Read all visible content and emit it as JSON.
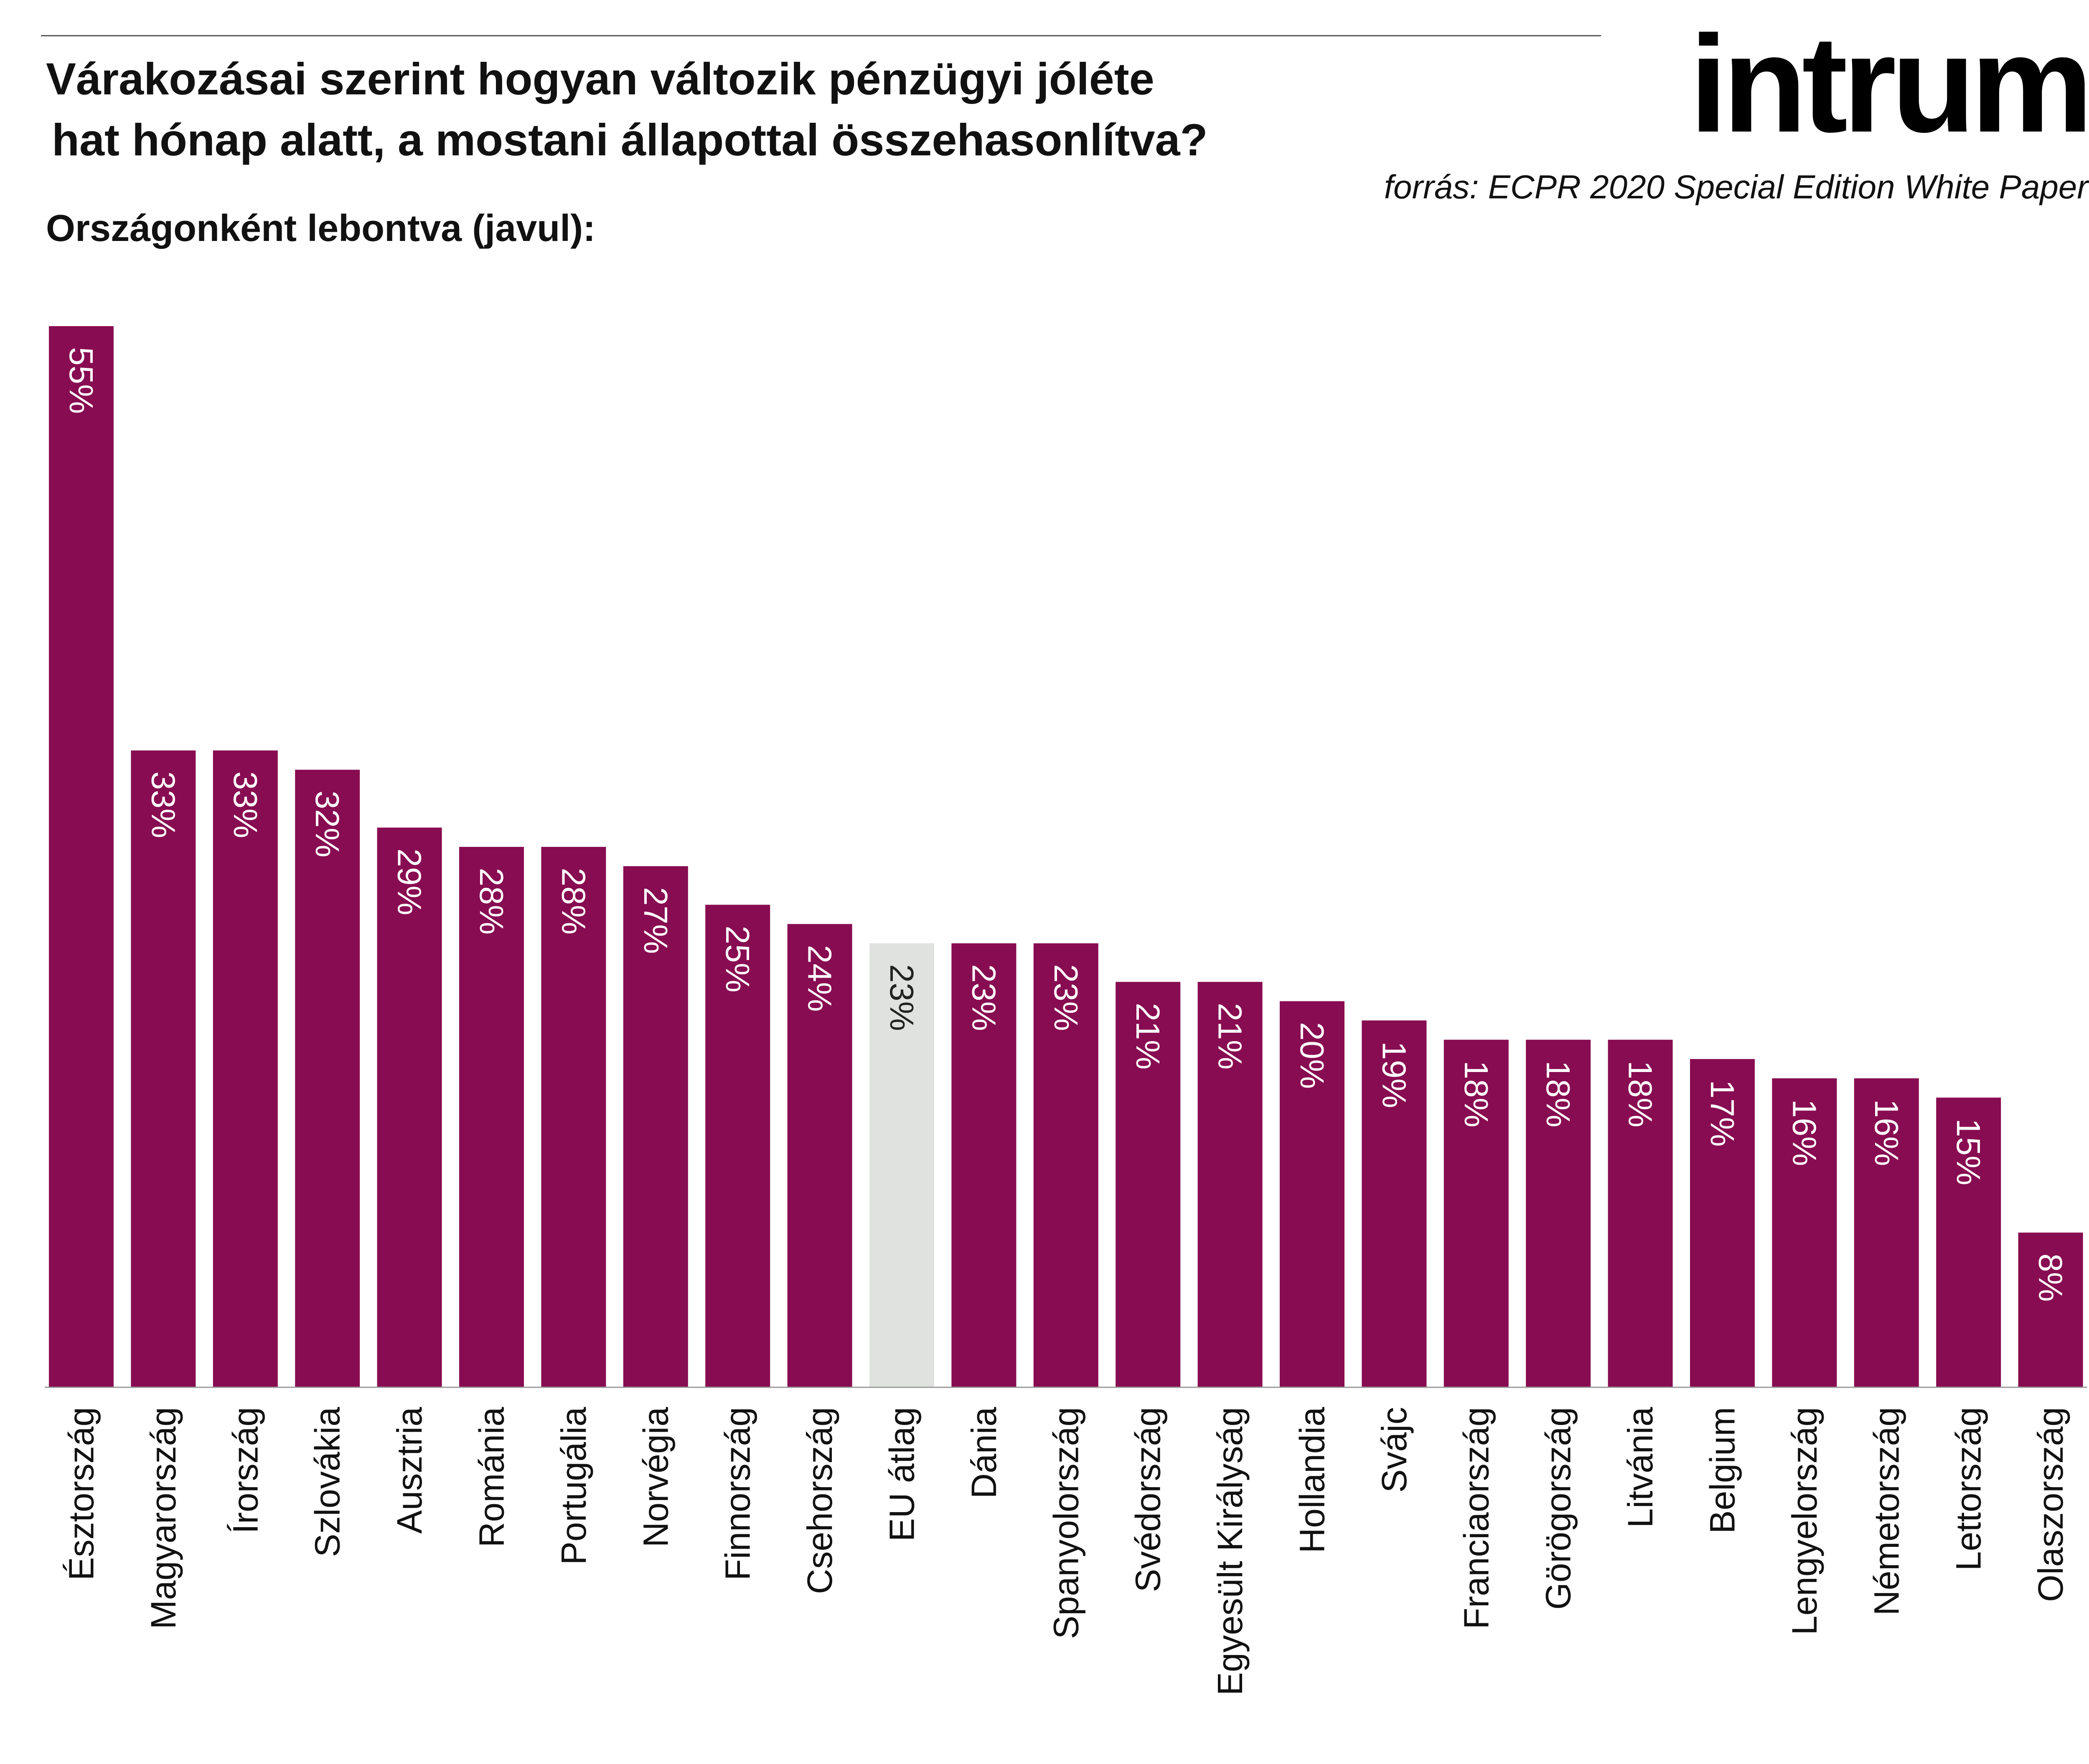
{
  "header": {
    "title_line1": "Várakozásai szerint hogyan változik pénzügyi jóléte",
    "title_line2": "hat hónap alatt, a mostani állapottal összehasonlítva?",
    "subtitle": "Országonként lebontva (javul):",
    "brand": "intrum",
    "source": "forrás: ECPR 2020 Special Edition White Paper"
  },
  "colors": {
    "bar": "#880c51",
    "highlight_bar": "#dfe2df",
    "bar_label": "#ffffff",
    "highlight_label": "#222222",
    "axis_label": "#111111"
  },
  "chart_data": {
    "type": "bar",
    "orientation": "vertical",
    "title": "",
    "xlabel": "",
    "ylabel": "",
    "unit": "%",
    "ylim": [
      0,
      55
    ],
    "grid": false,
    "legend": "none",
    "highlight": "EU átlag",
    "categories": [
      "Észtország",
      "Magyarország",
      "Írország",
      "Szlovákia",
      "Ausztria",
      "Románia",
      "Portugália",
      "Norvégia",
      "Finnország",
      "Csehország",
      "EU átlag",
      "Dánia",
      "Spanyolország",
      "Svédország",
      "Egyesült Királyság",
      "Hollandia",
      "Svájc",
      "Franciaország",
      "Görögország",
      "Litvánia",
      "Belgium",
      "Lengyelország",
      "Németország",
      "Lettország",
      "Olaszország"
    ],
    "values": [
      55,
      33,
      33,
      32,
      29,
      28,
      28,
      27,
      25,
      24,
      23,
      23,
      23,
      21,
      21,
      20,
      19,
      18,
      18,
      18,
      17,
      16,
      16,
      15,
      8
    ],
    "labels": [
      "55%",
      "33%",
      "33%",
      "32%",
      "29%",
      "28%",
      "28%",
      "27%",
      "25%",
      "24%",
      "23%",
      "23%",
      "23%",
      "21%",
      "21%",
      "20%",
      "19%",
      "18%",
      "18%",
      "18%",
      "17%",
      "16%",
      "16%",
      "15%",
      "8%"
    ]
  }
}
